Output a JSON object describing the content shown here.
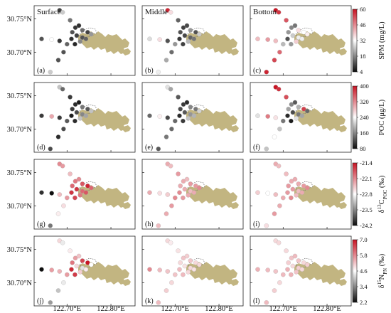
{
  "chart_data": {
    "type": "scatter",
    "column_titles": [
      "Surface",
      "Middle",
      "Bottom"
    ],
    "panel_letters": [
      "(a)",
      "(b)",
      "(c)",
      "(d)",
      "(e)",
      "(f)",
      "(g)",
      "(h)",
      "(i)",
      "(j)",
      "(k)",
      "(l)"
    ],
    "x_ticks": [
      122.7,
      122.8
    ],
    "x_tick_labels": [
      "122.70°E",
      "122.80°E"
    ],
    "y_ticks": [
      30.75,
      30.7
    ],
    "y_tick_labels": [
      "30.75°N",
      "30.70°N"
    ],
    "xlim": [
      122.625,
      122.855
    ],
    "ylim": [
      30.665,
      30.77
    ],
    "land_color": "#c2b581",
    "stations": [
      {
        "id": 1,
        "lon": 122.683,
        "lat": 30.763
      },
      {
        "id": 2,
        "lon": 122.69,
        "lat": 30.76
      },
      {
        "id": 3,
        "lon": 122.707,
        "lat": 30.748
      },
      {
        "id": 4,
        "lon": 122.719,
        "lat": 30.737
      },
      {
        "id": 5,
        "lon": 122.712,
        "lat": 30.73
      },
      {
        "id": 6,
        "lon": 122.727,
        "lat": 30.74
      },
      {
        "id": 7,
        "lon": 122.735,
        "lat": 30.733
      },
      {
        "id": 8,
        "lon": 122.71,
        "lat": 30.72
      },
      {
        "id": 9,
        "lon": 122.722,
        "lat": 30.725
      },
      {
        "id": 10,
        "lon": 122.735,
        "lat": 30.722
      },
      {
        "id": 11,
        "lon": 122.747,
        "lat": 30.73
      },
      {
        "id": 12,
        "lon": 122.7,
        "lat": 30.712
      },
      {
        "id": 13,
        "lon": 122.718,
        "lat": 30.712
      },
      {
        "id": 14,
        "lon": 122.73,
        "lat": 30.716
      },
      {
        "id": 15,
        "lon": 122.743,
        "lat": 30.72
      },
      {
        "id": 16,
        "lon": 122.755,
        "lat": 30.727
      },
      {
        "id": 17,
        "lon": 122.683,
        "lat": 30.717
      },
      {
        "id": 18,
        "lon": 122.692,
        "lat": 30.7
      },
      {
        "id": 19,
        "lon": 122.68,
        "lat": 30.688
      },
      {
        "id": 20,
        "lon": 122.662,
        "lat": 30.67
      },
      {
        "id": 21,
        "lon": 122.642,
        "lat": 30.72
      },
      {
        "id": 22,
        "lon": 122.665,
        "lat": 30.719
      }
    ],
    "variables": [
      {
        "key": "SPM",
        "colorbar_label": "SPM (mg/L)",
        "colorbar_ticks": [
          4,
          18,
          32,
          46,
          60
        ],
        "vmin": 4,
        "vmax": 60,
        "layers": {
          "surface": [
            10,
            26,
            16,
            9,
            12,
            8,
            15,
            8,
            10,
            12,
            10,
            14,
            7,
            18,
            14,
            20,
            9,
            12,
            12,
            26,
            12,
            32
          ],
          "middle": [
            58,
            36,
            14,
            10,
            12,
            11,
            20,
            9,
            11,
            14,
            12,
            20,
            10,
            24,
            16,
            26,
            12,
            15,
            22,
            30,
            28,
            36
          ],
          "bottom": [
            60,
            56,
            52,
            18,
            20,
            16,
            36,
            12,
            26,
            30,
            32,
            24,
            20,
            38,
            30,
            34,
            40,
            50,
            54,
            58,
            40,
            44
          ]
        }
      },
      {
        "key": "POC",
        "colorbar_label": "POC (μg/L)",
        "colorbar_ticks": [
          80,
          160,
          240,
          320,
          400
        ],
        "vmin": 80,
        "vmax": 400,
        "layers": {
          "surface": [
            200,
            140,
            110,
            100,
            110,
            90,
            150,
            90,
            120,
            160,
            130,
            130,
            100,
            200,
            180,
            200,
            110,
            120,
            100,
            120,
            110,
            300
          ],
          "middle": [
            220,
            180,
            130,
            110,
            120,
            100,
            160,
            100,
            130,
            170,
            150,
            140,
            110,
            200,
            190,
            210,
            120,
            140,
            150,
            130,
            140,
            250
          ],
          "bottom": [
            400,
            380,
            360,
            160,
            180,
            130,
            190,
            100,
            120,
            150,
            370,
            150,
            90,
            220,
            180,
            140,
            260,
            200,
            240,
            200,
            220,
            330
          ]
        }
      },
      {
        "key": "d13C",
        "colorbar_label": "δ13CPOC (‰)",
        "colorbar_ticks": [
          -21.4,
          -22.1,
          -22.8,
          -23.5,
          -24.2
        ],
        "vmin": -24.2,
        "vmax": -21.4,
        "layers": {
          "surface": [
            -22.1,
            -22.2,
            -22.4,
            -22.0,
            -21.9,
            -22.1,
            -21.8,
            -21.6,
            -21.6,
            -21.9,
            -21.5,
            -22.2,
            -21.7,
            -22.0,
            -21.8,
            -21.9,
            -22.4,
            -22.6,
            -22.7,
            -23.6,
            -24.0,
            -24.2
          ],
          "middle": [
            -22.3,
            -22.4,
            -22.2,
            -22.3,
            -22.3,
            -22.4,
            -22.2,
            -22.1,
            -22.3,
            -22.4,
            -22.2,
            -22.1,
            -22.2,
            -22.3,
            -22.3,
            -22.1,
            -22.5,
            -22.2,
            -22.3,
            -22.4,
            -22.3,
            -22.6
          ],
          "bottom": [
            -22.3,
            -22.4,
            -22.4,
            -22.3,
            -22.2,
            -22.3,
            -22.3,
            -22.2,
            -22.2,
            -22.4,
            -22.2,
            -22.3,
            -22.1,
            -22.4,
            -22.3,
            -22.1,
            -22.4,
            -22.3,
            -22.2,
            -22.6,
            -22.5,
            -22.8
          ]
        }
      },
      {
        "key": "d15N",
        "colorbar_label": "δ15NPN (‰)",
        "colorbar_ticks": [
          7.0,
          5.8,
          4.6,
          3.4,
          2.2
        ],
        "vmin": 2.2,
        "vmax": 7.0,
        "layers": {
          "surface": [
            5.0,
            4.4,
            4.8,
            5.6,
            6.0,
            5.2,
            6.5,
            6.8,
            5.0,
            4.3,
            7.0,
            5.6,
            6.6,
            5.1,
            4.8,
            4.6,
            5.4,
            4.4,
            4.0,
            3.6,
            2.2,
            5.6
          ],
          "middle": [
            5.0,
            4.8,
            4.9,
            5.2,
            5.0,
            5.1,
            5.2,
            5.3,
            4.9,
            5.0,
            5.0,
            5.2,
            5.3,
            5.0,
            4.9,
            5.0,
            5.2,
            5.0,
            5.1,
            5.3,
            5.8,
            5.3
          ],
          "bottom": [
            5.0,
            5.0,
            5.0,
            5.2,
            5.1,
            5.3,
            5.2,
            5.4,
            5.0,
            5.1,
            5.0,
            5.3,
            5.4,
            5.2,
            5.0,
            5.1,
            5.2,
            5.0,
            5.1,
            5.3,
            5.4,
            5.3
          ]
        }
      }
    ]
  }
}
